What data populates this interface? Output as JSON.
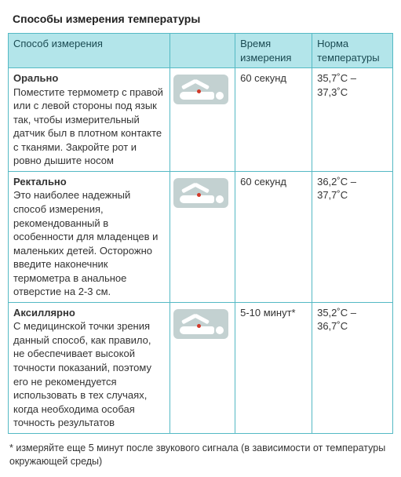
{
  "title": "Способы измерения температуры",
  "columns": {
    "method": "Способ измерения",
    "icon": "",
    "time": "Время измерения",
    "norm": "Норма температуры"
  },
  "rows": [
    {
      "name": "Орально",
      "desc": "Поместите термометр с правой или с левой стороны под язык так, чтобы измерительный датчик был в плотном контакте с тканями. Закройте рот и ровно дышите носом",
      "time": "60 секунд",
      "norm": "35,7˚С – 37,3˚С"
    },
    {
      "name": "Ректально",
      "desc": "Это наиболее надежный способ измерения, рекомендованный в особенности для младенцев и маленьких детей. Осторожно введите наконечник термометра в анальное отверстие на 2-3 см.",
      "time": "60 секунд",
      "norm": "36,2˚С – 37,7˚С"
    },
    {
      "name": "Аксиллярно",
      "desc": "С медицинской точки зрения данный способ, как правило, не обеспечивает высокой точности показаний, поэтому его не рекомендуется использовать в тех случаях, когда необходима особая точность результатов",
      "time": "5-10 минут*",
      "norm": "35,2˚С – 36,7˚С"
    }
  ],
  "footnote": "* измеряйте еще 5 минут после звукового сигнала (в зависимости от температуры окружающей среды)",
  "colors": {
    "border": "#54b9c4",
    "header_bg": "#b3e5ea",
    "icon_bg": "#c3d1d1",
    "red_dot": "#d23a2a"
  }
}
